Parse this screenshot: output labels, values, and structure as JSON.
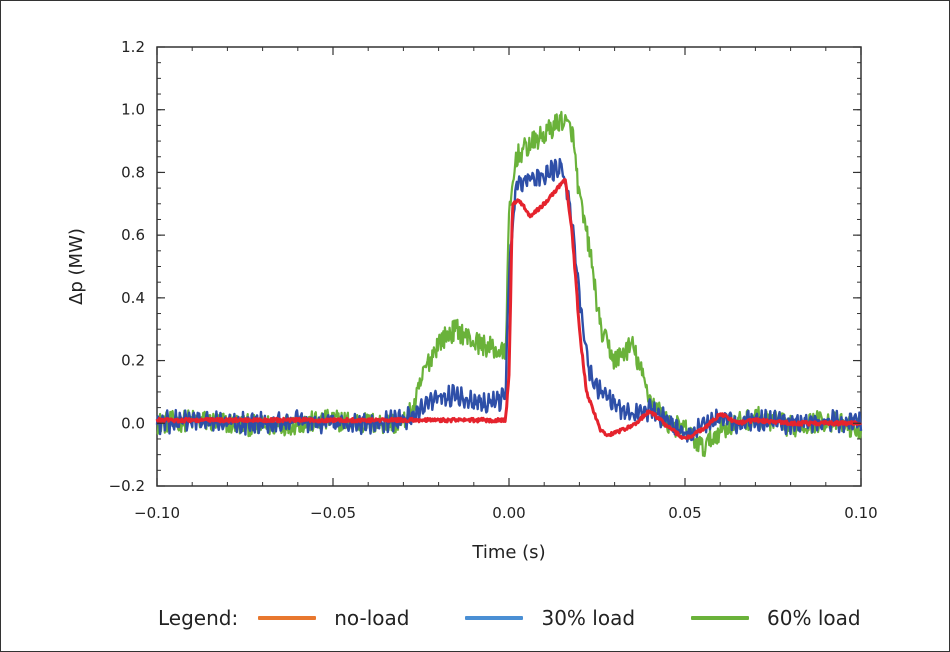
{
  "chart_data": {
    "type": "line",
    "xlabel": "Time (s)",
    "ylabel": "Δp (MW)",
    "xlim": [
      -0.1,
      0.1
    ],
    "ylim": [
      -0.2,
      1.2
    ],
    "xticks": [
      -0.1,
      -0.05,
      0.0,
      0.05,
      0.1
    ],
    "xtick_labels": [
      "−0.10",
      "−0.05",
      "0.00",
      "0.05",
      "0.10"
    ],
    "yticks": [
      -0.2,
      0.0,
      0.2,
      0.4,
      0.6,
      0.8,
      1.0,
      1.2
    ],
    "ytick_labels": [
      "−0.2",
      "0.0",
      "0.2",
      "0.4",
      "0.6",
      "0.8",
      "1.0",
      "1.2"
    ],
    "legend_title": "Legend:",
    "legend_position": "bottom",
    "legend": [
      {
        "label": "no-load",
        "color": "#e8772e"
      },
      {
        "label": "30% load",
        "color": "#4a8fd4"
      },
      {
        "label": "60% load",
        "color": "#6ab23a"
      }
    ],
    "series": [
      {
        "color": "#6ab23a",
        "x": [
          -0.1,
          -0.09,
          -0.08,
          -0.07,
          -0.06,
          -0.05,
          -0.04,
          -0.03,
          -0.027,
          -0.024,
          -0.02,
          -0.015,
          -0.01,
          -0.005,
          -0.001,
          0.0,
          0.002,
          0.005,
          0.01,
          0.015,
          0.018,
          0.02,
          0.023,
          0.026,
          0.03,
          0.035,
          0.04,
          0.045,
          0.05,
          0.055,
          0.06,
          0.065,
          0.07,
          0.08,
          0.09,
          0.1
        ],
        "y": [
          0.0,
          0.01,
          0.0,
          -0.01,
          0.0,
          0.01,
          0.0,
          0.0,
          0.05,
          0.17,
          0.26,
          0.3,
          0.26,
          0.24,
          0.22,
          0.65,
          0.85,
          0.88,
          0.92,
          0.97,
          0.93,
          0.72,
          0.55,
          0.3,
          0.2,
          0.25,
          0.08,
          0.0,
          -0.02,
          -0.08,
          -0.02,
          0.0,
          0.02,
          -0.01,
          0.01,
          -0.02
        ]
      },
      {
        "color": "#2e4fa8",
        "x": [
          -0.1,
          -0.09,
          -0.08,
          -0.07,
          -0.06,
          -0.05,
          -0.04,
          -0.03,
          -0.027,
          -0.024,
          -0.02,
          -0.015,
          -0.01,
          -0.005,
          -0.001,
          0.0,
          0.002,
          0.005,
          0.01,
          0.015,
          0.017,
          0.019,
          0.021,
          0.023,
          0.025,
          0.03,
          0.035,
          0.04,
          0.045,
          0.05,
          0.055,
          0.06,
          0.065,
          0.07,
          0.08,
          0.09,
          0.1
        ],
        "y": [
          0.0,
          0.01,
          0.0,
          0.0,
          0.01,
          0.0,
          0.0,
          0.01,
          0.02,
          0.05,
          0.08,
          0.09,
          0.07,
          0.07,
          0.08,
          0.48,
          0.76,
          0.78,
          0.79,
          0.82,
          0.72,
          0.52,
          0.3,
          0.16,
          0.12,
          0.06,
          0.03,
          0.04,
          0.01,
          -0.04,
          -0.01,
          0.02,
          0.0,
          0.01,
          0.0,
          0.01,
          0.0
        ]
      },
      {
        "color": "#e5232d",
        "x": [
          -0.1,
          -0.09,
          -0.08,
          -0.07,
          -0.06,
          -0.05,
          -0.04,
          -0.03,
          -0.025,
          -0.02,
          -0.015,
          -0.01,
          -0.005,
          -0.001,
          0.0,
          0.001,
          0.003,
          0.006,
          0.01,
          0.013,
          0.016,
          0.018,
          0.02,
          0.022,
          0.024,
          0.026,
          0.028,
          0.03,
          0.035,
          0.04,
          0.045,
          0.05,
          0.055,
          0.06,
          0.065,
          0.07,
          0.08,
          0.09,
          0.1
        ],
        "y": [
          0.01,
          0.01,
          0.01,
          0.01,
          0.01,
          0.01,
          0.01,
          0.01,
          0.01,
          0.01,
          0.01,
          0.01,
          0.01,
          0.01,
          0.15,
          0.7,
          0.71,
          0.66,
          0.7,
          0.74,
          0.78,
          0.6,
          0.3,
          0.1,
          0.04,
          -0.02,
          -0.04,
          -0.03,
          -0.01,
          0.04,
          -0.01,
          -0.05,
          -0.02,
          0.03,
          0.0,
          0.01,
          0.0,
          0.0,
          0.0
        ]
      }
    ]
  }
}
